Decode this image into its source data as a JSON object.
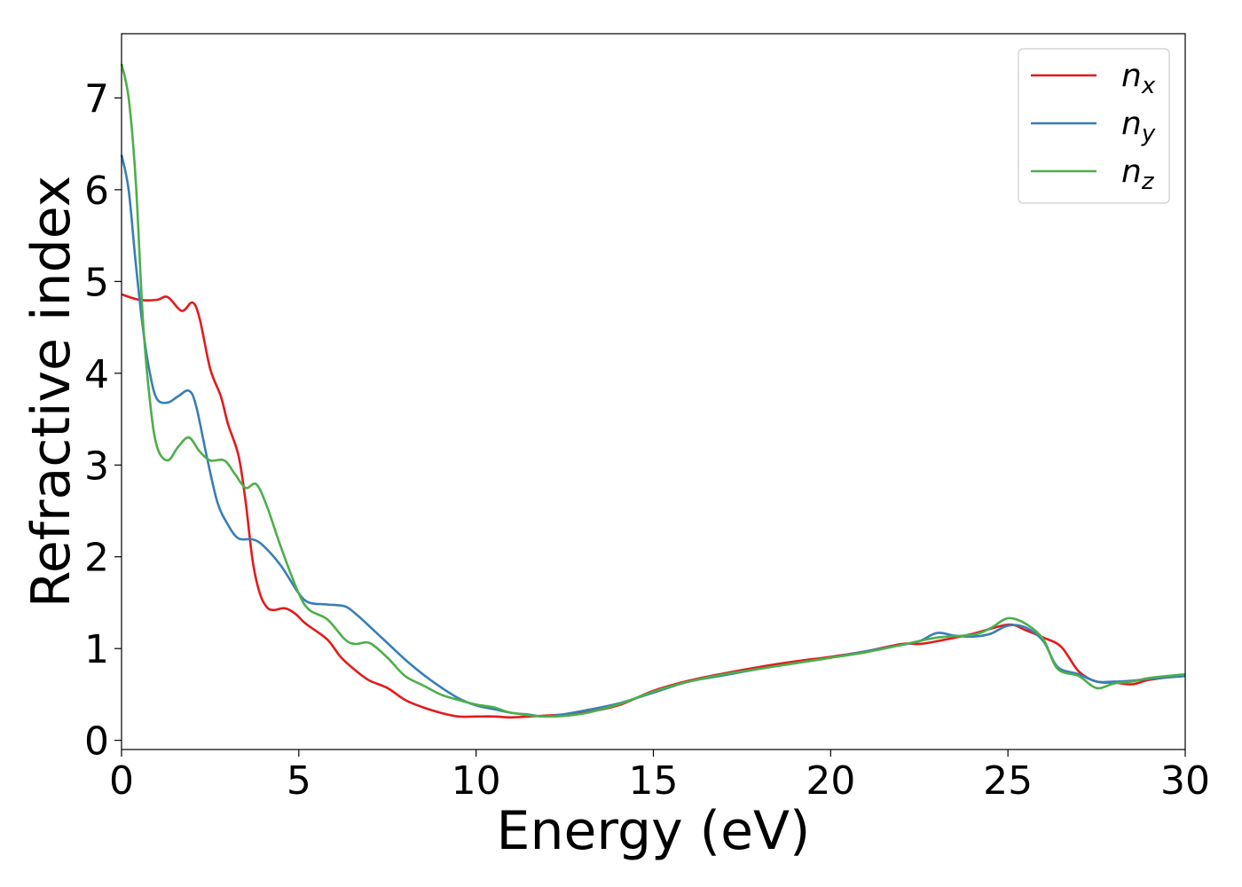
{
  "chart_data": {
    "type": "line",
    "xlabel": "Energy (eV)",
    "ylabel": "Refractive index",
    "xlim": [
      0,
      30
    ],
    "ylim": [
      -0.1,
      7.7
    ],
    "xticks": [
      0,
      5,
      10,
      15,
      20,
      25,
      30
    ],
    "yticks": [
      0,
      1,
      2,
      3,
      4,
      5,
      6,
      7
    ],
    "grid": false,
    "legend_position": "top-right",
    "series": [
      {
        "name": "n",
        "subscript": "x",
        "color": "#e41a1c",
        "points": [
          [
            0,
            4.86
          ],
          [
            0.5,
            4.8
          ],
          [
            1.0,
            4.8
          ],
          [
            1.3,
            4.83
          ],
          [
            1.7,
            4.68
          ],
          [
            2.0,
            4.77
          ],
          [
            2.2,
            4.6
          ],
          [
            2.5,
            4.05
          ],
          [
            2.8,
            3.75
          ],
          [
            3.0,
            3.45
          ],
          [
            3.3,
            3.1
          ],
          [
            3.5,
            2.6
          ],
          [
            3.7,
            1.95
          ],
          [
            3.9,
            1.6
          ],
          [
            4.1,
            1.45
          ],
          [
            4.3,
            1.42
          ],
          [
            4.6,
            1.44
          ],
          [
            4.9,
            1.38
          ],
          [
            5.2,
            1.27
          ],
          [
            5.8,
            1.1
          ],
          [
            6.2,
            0.9
          ],
          [
            6.7,
            0.73
          ],
          [
            7.0,
            0.65
          ],
          [
            7.5,
            0.57
          ],
          [
            8.0,
            0.44
          ],
          [
            8.5,
            0.36
          ],
          [
            9.0,
            0.3
          ],
          [
            9.5,
            0.26
          ],
          [
            10.0,
            0.26
          ],
          [
            10.5,
            0.26
          ],
          [
            11.0,
            0.25
          ],
          [
            11.5,
            0.26
          ],
          [
            12.0,
            0.27
          ],
          [
            13.0,
            0.3
          ],
          [
            14.0,
            0.38
          ],
          [
            15.0,
            0.54
          ],
          [
            16.0,
            0.65
          ],
          [
            17.0,
            0.73
          ],
          [
            18.0,
            0.8
          ],
          [
            19.0,
            0.86
          ],
          [
            20.0,
            0.91
          ],
          [
            21.0,
            0.97
          ],
          [
            22.0,
            1.05
          ],
          [
            22.5,
            1.05
          ],
          [
            23.0,
            1.08
          ],
          [
            24.0,
            1.16
          ],
          [
            25.0,
            1.26
          ],
          [
            25.5,
            1.2
          ],
          [
            26.0,
            1.12
          ],
          [
            26.5,
            1.02
          ],
          [
            27.0,
            0.75
          ],
          [
            27.5,
            0.64
          ],
          [
            28.0,
            0.63
          ],
          [
            28.5,
            0.61
          ],
          [
            29.0,
            0.66
          ],
          [
            30,
            0.71
          ]
        ]
      },
      {
        "name": "n",
        "subscript": "y",
        "color": "#377eb8",
        "points": [
          [
            0,
            6.38
          ],
          [
            0.2,
            6.0
          ],
          [
            0.4,
            5.2
          ],
          [
            0.6,
            4.5
          ],
          [
            0.8,
            4.0
          ],
          [
            1.0,
            3.72
          ],
          [
            1.3,
            3.68
          ],
          [
            1.6,
            3.75
          ],
          [
            1.9,
            3.81
          ],
          [
            2.1,
            3.65
          ],
          [
            2.4,
            3.1
          ],
          [
            2.7,
            2.6
          ],
          [
            3.0,
            2.35
          ],
          [
            3.3,
            2.2
          ],
          [
            3.7,
            2.19
          ],
          [
            4.0,
            2.12
          ],
          [
            4.5,
            1.9
          ],
          [
            5.0,
            1.6
          ],
          [
            5.3,
            1.5
          ],
          [
            5.8,
            1.48
          ],
          [
            6.3,
            1.46
          ],
          [
            6.6,
            1.38
          ],
          [
            7.0,
            1.24
          ],
          [
            7.5,
            1.06
          ],
          [
            8.0,
            0.88
          ],
          [
            8.5,
            0.72
          ],
          [
            9.0,
            0.58
          ],
          [
            9.5,
            0.46
          ],
          [
            10.0,
            0.38
          ],
          [
            10.5,
            0.34
          ],
          [
            11.0,
            0.3
          ],
          [
            11.5,
            0.28
          ],
          [
            12.0,
            0.26
          ],
          [
            13.0,
            0.32
          ],
          [
            14.0,
            0.4
          ],
          [
            15.0,
            0.52
          ],
          [
            16.0,
            0.64
          ],
          [
            17.0,
            0.71
          ],
          [
            18.0,
            0.78
          ],
          [
            19.0,
            0.84
          ],
          [
            20.0,
            0.9
          ],
          [
            21.0,
            0.97
          ],
          [
            22.0,
            1.04
          ],
          [
            22.5,
            1.08
          ],
          [
            23.0,
            1.17
          ],
          [
            23.5,
            1.14
          ],
          [
            24.0,
            1.13
          ],
          [
            24.5,
            1.16
          ],
          [
            25.0,
            1.25
          ],
          [
            25.5,
            1.23
          ],
          [
            26.0,
            1.08
          ],
          [
            26.4,
            0.8
          ],
          [
            27.0,
            0.72
          ],
          [
            27.5,
            0.64
          ],
          [
            28.0,
            0.64
          ],
          [
            28.5,
            0.65
          ],
          [
            29.0,
            0.67
          ],
          [
            30,
            0.7
          ]
        ]
      },
      {
        "name": "n",
        "subscript": "z",
        "color": "#4daf4a",
        "points": [
          [
            0,
            7.37
          ],
          [
            0.2,
            7.0
          ],
          [
            0.4,
            6.1
          ],
          [
            0.6,
            4.6
          ],
          [
            0.8,
            3.7
          ],
          [
            1.0,
            3.2
          ],
          [
            1.3,
            3.05
          ],
          [
            1.6,
            3.2
          ],
          [
            1.9,
            3.3
          ],
          [
            2.2,
            3.15
          ],
          [
            2.5,
            3.05
          ],
          [
            2.9,
            3.05
          ],
          [
            3.2,
            2.9
          ],
          [
            3.5,
            2.75
          ],
          [
            3.8,
            2.79
          ],
          [
            4.1,
            2.55
          ],
          [
            4.5,
            2.1
          ],
          [
            5.0,
            1.6
          ],
          [
            5.3,
            1.42
          ],
          [
            5.8,
            1.32
          ],
          [
            6.3,
            1.1
          ],
          [
            6.6,
            1.05
          ],
          [
            7.0,
            1.06
          ],
          [
            7.5,
            0.9
          ],
          [
            8.0,
            0.7
          ],
          [
            8.5,
            0.6
          ],
          [
            9.0,
            0.5
          ],
          [
            9.5,
            0.44
          ],
          [
            10.0,
            0.39
          ],
          [
            10.5,
            0.36
          ],
          [
            11.0,
            0.3
          ],
          [
            12.0,
            0.26
          ],
          [
            13.0,
            0.29
          ],
          [
            14.0,
            0.39
          ],
          [
            15.0,
            0.53
          ],
          [
            16.0,
            0.64
          ],
          [
            17.0,
            0.72
          ],
          [
            18.0,
            0.78
          ],
          [
            19.0,
            0.84
          ],
          [
            20.0,
            0.9
          ],
          [
            21.0,
            0.96
          ],
          [
            22.0,
            1.04
          ],
          [
            23.0,
            1.12
          ],
          [
            24.0,
            1.15
          ],
          [
            24.5,
            1.22
          ],
          [
            25.0,
            1.33
          ],
          [
            25.5,
            1.27
          ],
          [
            26.0,
            1.1
          ],
          [
            26.4,
            0.78
          ],
          [
            27.0,
            0.7
          ],
          [
            27.5,
            0.57
          ],
          [
            28.0,
            0.62
          ],
          [
            28.5,
            0.64
          ],
          [
            29.0,
            0.68
          ],
          [
            30,
            0.72
          ]
        ]
      }
    ]
  }
}
